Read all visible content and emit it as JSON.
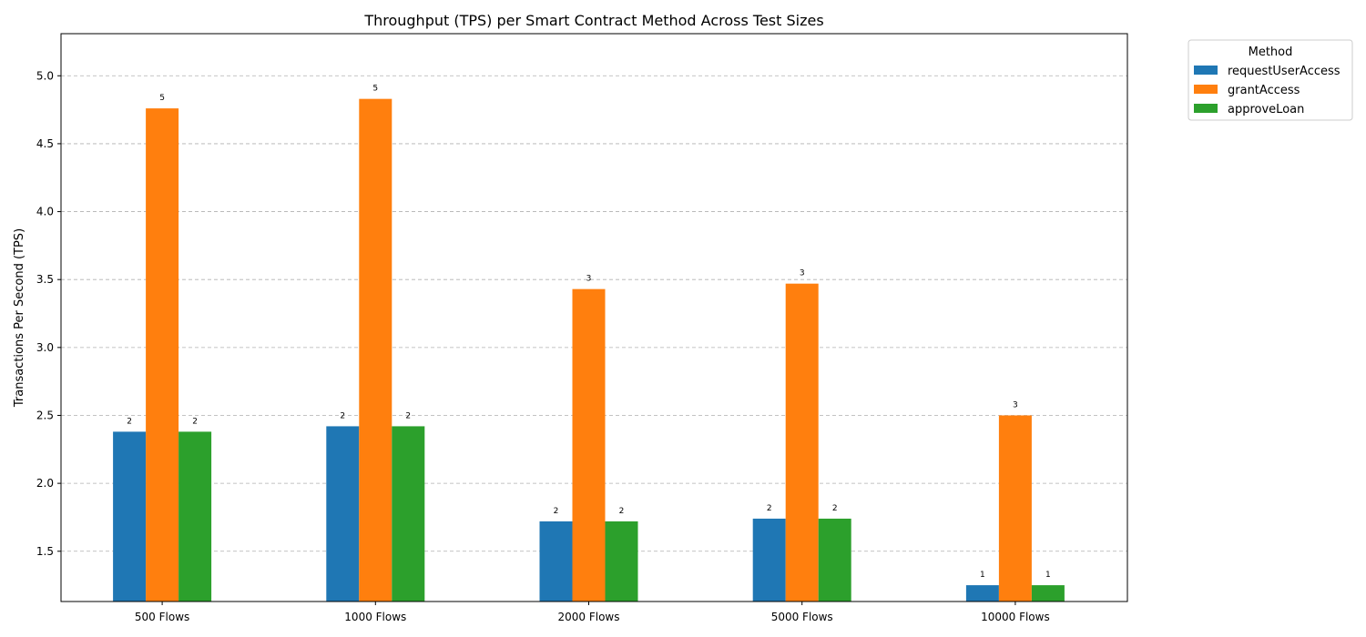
{
  "chart_data": {
    "type": "bar",
    "title": "Throughput (TPS) per Smart Contract Method Across Test Sizes",
    "xlabel": "",
    "ylabel": "Transactions Per Second (TPS)",
    "categories": [
      "500 Flows",
      "1000 Flows",
      "2000 Flows",
      "5000 Flows",
      "10000 Flows"
    ],
    "series": [
      {
        "name": "requestUserAccess",
        "color": "#1f77b4",
        "values": [
          2.38,
          2.42,
          1.72,
          1.74,
          1.25
        ],
        "labels": [
          "2",
          "2",
          "2",
          "2",
          "1"
        ]
      },
      {
        "name": "grantAccess",
        "color": "#ff7f0e",
        "values": [
          4.76,
          4.83,
          3.43,
          3.47,
          2.5
        ],
        "labels": [
          "5",
          "5",
          "3",
          "3",
          "3"
        ]
      },
      {
        "name": "approveLoan",
        "color": "#2ca02c",
        "values": [
          2.38,
          2.42,
          1.72,
          1.74,
          1.25
        ],
        "labels": [
          "2",
          "2",
          "2",
          "2",
          "1"
        ]
      }
    ],
    "ylim": [
      1.13,
      5.31
    ],
    "yticks": [
      "1.5",
      "2.0",
      "2.5",
      "3.0",
      "3.5",
      "4.0",
      "4.5",
      "5.0"
    ],
    "grid": "y-dashed",
    "legend": {
      "title": "Method",
      "placement": "outside-top-right"
    }
  }
}
